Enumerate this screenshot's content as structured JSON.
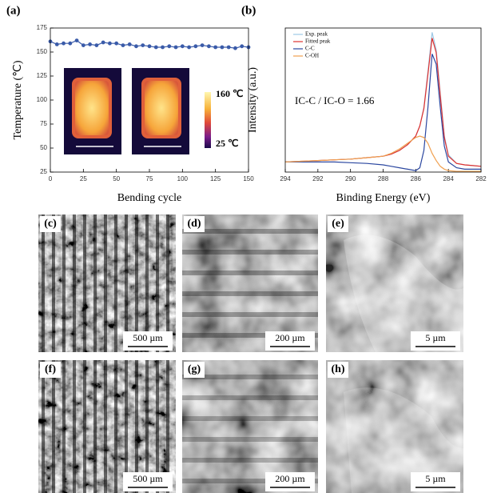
{
  "chart_data": [
    {
      "type": "line",
      "panel": "(a)",
      "xlabel": "Bending cycle",
      "ylabel": "Temperature (℃)",
      "x": [
        0,
        5,
        10,
        15,
        20,
        25,
        30,
        35,
        40,
        45,
        50,
        55,
        60,
        65,
        70,
        75,
        80,
        85,
        90,
        95,
        100,
        105,
        110,
        115,
        120,
        125,
        130,
        135,
        140,
        145,
        150
      ],
      "series": [
        {
          "name": null,
          "color": "#3a5ba9",
          "values": [
            161,
            158,
            159,
            159,
            162,
            157,
            158,
            157,
            160,
            159,
            159,
            157,
            158,
            156,
            157,
            156,
            155,
            155,
            156,
            155,
            156,
            155,
            156,
            157,
            156,
            155,
            155,
            155,
            154,
            156,
            155
          ]
        }
      ],
      "marker": true,
      "xlim": [
        0,
        150
      ],
      "xticks": [
        0,
        25,
        50,
        75,
        100,
        125,
        150
      ],
      "ylim": [
        25,
        175
      ],
      "yticks": [
        25,
        50,
        75,
        100,
        125,
        150,
        175
      ],
      "inset": {
        "max_label": "160 ℃",
        "min_label": "25 ℃"
      }
    },
    {
      "type": "line",
      "panel": "(b)",
      "xlabel": "Binding Energy (eV)",
      "ylabel": "Intensity (a.u.)",
      "annotation": "IC-C / IC-O = 1.66",
      "x": [
        294,
        293,
        292,
        291,
        290,
        289,
        288,
        287.5,
        287,
        286.5,
        286,
        285.75,
        285.5,
        285.25,
        285,
        284.75,
        284.5,
        284.25,
        284,
        283.5,
        283,
        282.5,
        282
      ],
      "series": [
        {
          "name": "Exp. peak",
          "color": "#9ec9e6",
          "values": [
            7,
            7.5,
            8,
            8.5,
            9,
            10,
            11,
            12.5,
            15,
            19,
            25,
            32,
            45,
            70,
            97,
            85,
            55,
            25,
            12,
            6,
            5,
            4.5,
            4
          ]
        },
        {
          "name": "Fitted peak",
          "color": "#e0312f",
          "values": [
            7,
            7.5,
            8,
            8.5,
            9,
            10,
            11,
            12.5,
            15,
            19,
            25,
            32,
            44,
            68,
            93,
            83,
            53,
            24,
            11,
            6,
            5,
            4.5,
            4
          ]
        },
        {
          "name": "C-C",
          "color": "#2b47a0",
          "values": [
            7,
            7,
            7,
            7,
            6.5,
            6,
            5,
            4,
            3,
            2,
            1,
            3,
            15,
            45,
            82,
            75,
            45,
            18,
            7,
            3,
            2,
            2,
            2
          ]
        },
        {
          "name": "C-OH",
          "color": "#f0a050",
          "values": [
            7,
            7.5,
            8,
            8.5,
            9,
            10,
            11,
            13,
            16,
            20,
            24,
            25,
            24,
            20,
            13,
            8,
            4,
            2,
            1,
            0.5,
            0.5,
            0.5,
            0.5
          ]
        }
      ],
      "marker": false,
      "xlim": [
        294,
        282
      ],
      "xticks": [
        294,
        292,
        290,
        288,
        286,
        284,
        282
      ],
      "ylim": [
        0,
        100
      ]
    }
  ],
  "images": [
    {
      "label": "(c)",
      "scale": "500 µm"
    },
    {
      "label": "(d)",
      "scale": "200 µm"
    },
    {
      "label": "(e)",
      "scale": "5 µm"
    },
    {
      "label": "(f)",
      "scale": "500 µm"
    },
    {
      "label": "(g)",
      "scale": "200 µm"
    },
    {
      "label": "(h)",
      "scale": "5 µm"
    }
  ]
}
